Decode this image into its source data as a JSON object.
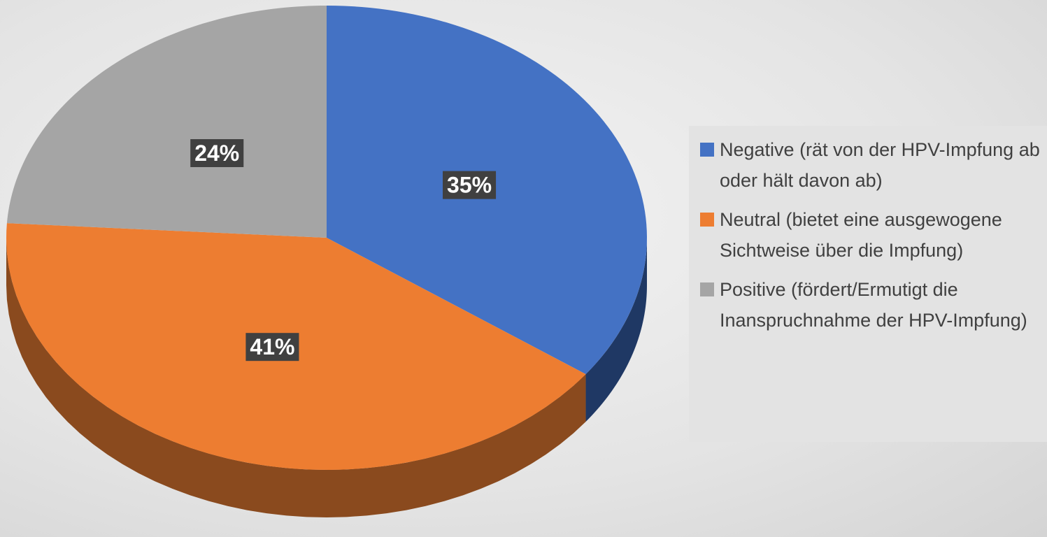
{
  "chart_data": {
    "type": "pie",
    "categories": [
      "Negative (rät von der HPV-Impfung ab oder hält davon ab)",
      "Neutral (bietet eine ausgewogene Sichtweise über die Impfung)",
      "Positive (fördert/Ermutigt die Inanspruchnahme der HPV-Impfung)"
    ],
    "values": [
      35,
      41,
      24
    ],
    "value_labels": [
      "35%",
      "41%",
      "24%"
    ],
    "colors": [
      "#4472c4",
      "#ed7d31",
      "#a5a5a5"
    ],
    "side_colors": [
      "#1f3864",
      "#8a4a1e",
      "#6b6b6b"
    ],
    "legend": "right"
  }
}
